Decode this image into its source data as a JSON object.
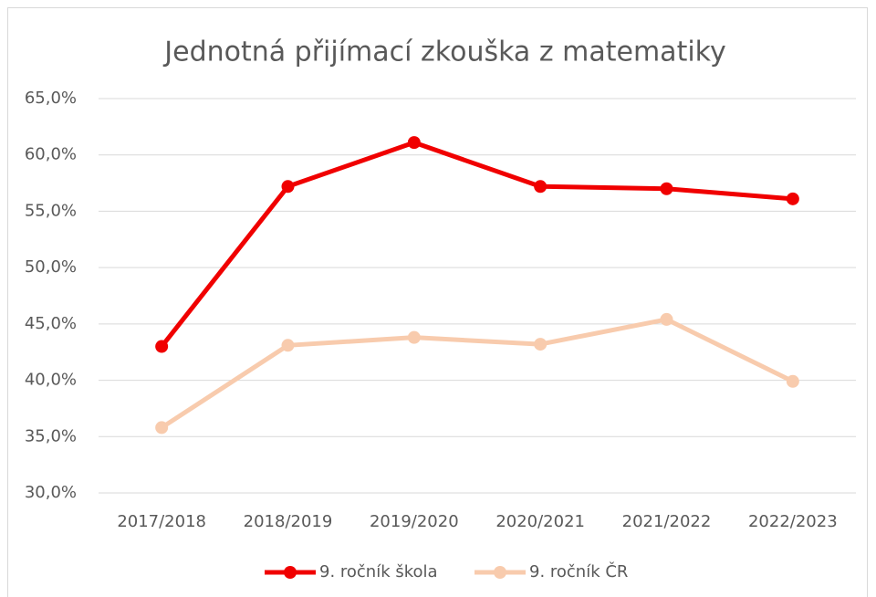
{
  "chart_data": {
    "type": "line",
    "title": "Jednotná přijímací zkouška z matematiky",
    "categories": [
      "2017/2018",
      "2018/2019",
      "2019/2020",
      "2020/2021",
      "2021/2022",
      "2022/2023"
    ],
    "series": [
      {
        "name": "9. ročník škola",
        "color": "#f00000",
        "values": [
          43.0,
          57.2,
          61.1,
          57.2,
          57.0,
          56.1
        ]
      },
      {
        "name": "9. ročník ČR",
        "color": "#f8cbad",
        "values": [
          35.8,
          43.1,
          43.8,
          43.2,
          45.4,
          39.9
        ]
      }
    ],
    "ylim": [
      30,
      65
    ],
    "yticks": [
      {
        "value": 30,
        "label": "30,0%"
      },
      {
        "value": 35,
        "label": "35,0%"
      },
      {
        "value": 40,
        "label": "40,0%"
      },
      {
        "value": 45,
        "label": "45,0%"
      },
      {
        "value": 50,
        "label": "50,0%"
      },
      {
        "value": 55,
        "label": "55,0%"
      },
      {
        "value": 60,
        "label": "60,0%"
      },
      {
        "value": 65,
        "label": "65,0%"
      }
    ],
    "grid": true,
    "legend": "bottom"
  }
}
